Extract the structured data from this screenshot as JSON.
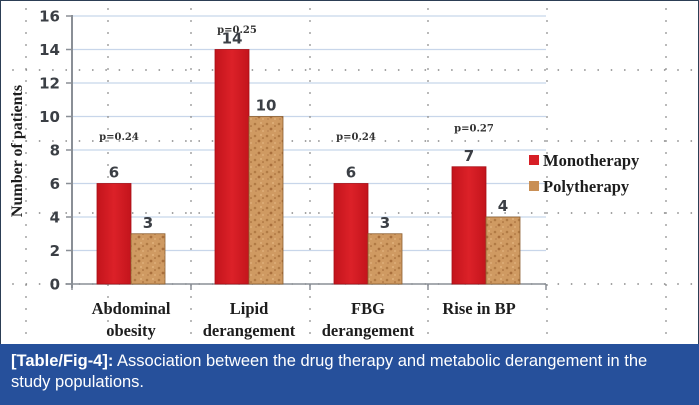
{
  "caption": {
    "label": "[Table/Fig-4]:",
    "text": " Association between the drug therapy and metabolic derangement in the study populations."
  },
  "colors": {
    "monotherapy": "#d71f26",
    "polytherapy": "#c98f55",
    "gridline": "#c8d6ea",
    "axis": "#8a8f96",
    "caption_bg": "#26509b"
  },
  "chart_data": {
    "type": "bar",
    "title": "",
    "xlabel": "",
    "ylabel": "Number of patients",
    "ylim": [
      0,
      16
    ],
    "yticks": [
      0,
      2,
      4,
      6,
      8,
      10,
      12,
      14,
      16
    ],
    "grid": true,
    "legend_position": "right",
    "categories": [
      [
        "Abdominal",
        "obesity"
      ],
      [
        "Lipid",
        "derangement"
      ],
      [
        "FBG",
        "derangement"
      ],
      [
        "Rise in BP"
      ]
    ],
    "series": [
      {
        "name": "Monotherapy",
        "values": [
          6,
          14,
          6,
          7
        ]
      },
      {
        "name": "Polytherapy",
        "values": [
          3,
          10,
          3,
          4
        ]
      }
    ],
    "annotations": [
      "p=0.24",
      "p=0.25",
      "p=0.24",
      "p=0.27"
    ],
    "annotation_y": [
      8.6,
      15.0,
      8.6,
      9.1
    ]
  }
}
